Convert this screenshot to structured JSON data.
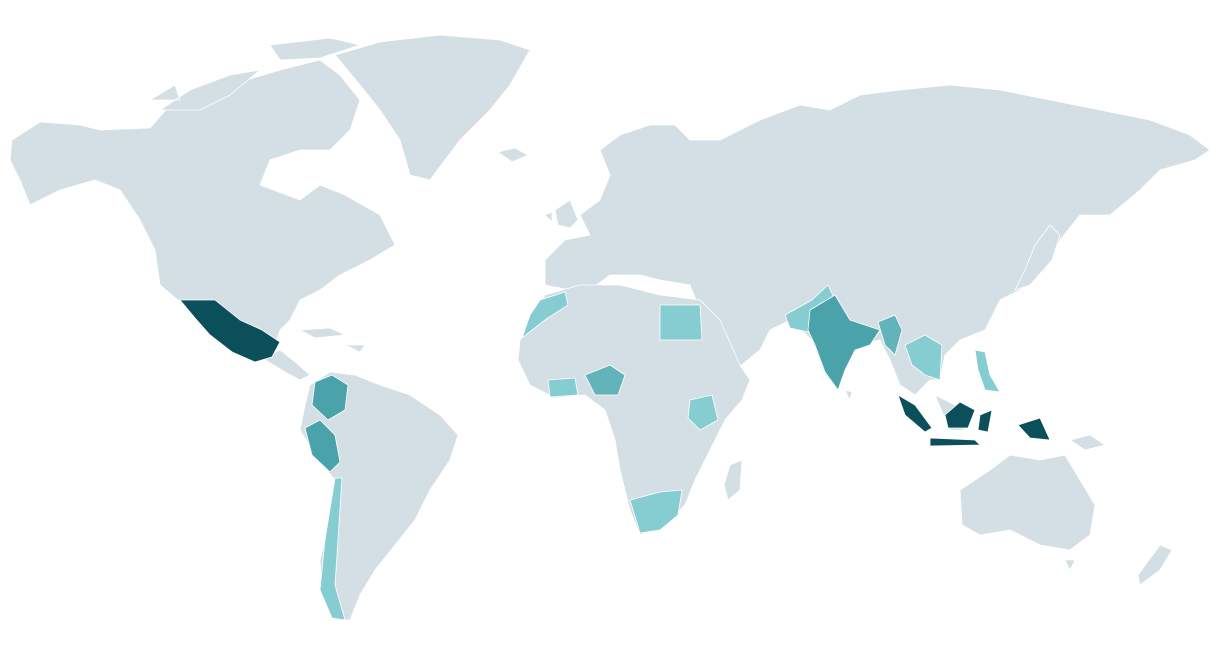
{
  "map": {
    "background": "#ffffff",
    "land": "#d3dfe5",
    "borders": "#ffffff",
    "shades": [
      "#86cdd1",
      "#62b3ba",
      "#4aa3ab",
      "#0b4f5b"
    ]
  }
}
